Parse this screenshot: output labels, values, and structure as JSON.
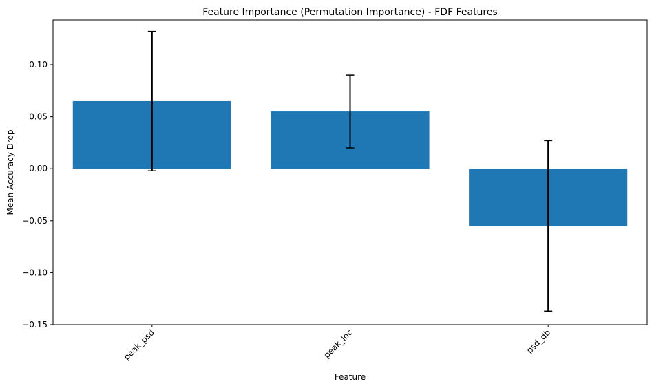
{
  "chart_data": {
    "type": "bar",
    "title": "Feature Importance (Permutation Importance) - FDF Features",
    "xlabel": "Feature",
    "ylabel": "Mean Accuracy Drop",
    "categories": [
      "peak_psd",
      "peak_loc",
      "psd_db"
    ],
    "values": [
      0.065,
      0.055,
      -0.055
    ],
    "error_bars": [
      0.067,
      0.035,
      0.082
    ],
    "ylim": [
      -0.15,
      0.143
    ],
    "yticks": [
      -0.15,
      -0.1,
      -0.05,
      0.0,
      0.05,
      0.1
    ],
    "ytick_labels": [
      "−0.15",
      "−0.10",
      "−0.05",
      "0.00",
      "0.05",
      "0.10"
    ],
    "grid": false,
    "colors": {
      "bar": "#1f77b4",
      "error": "#000000",
      "axis": "#000000"
    }
  }
}
